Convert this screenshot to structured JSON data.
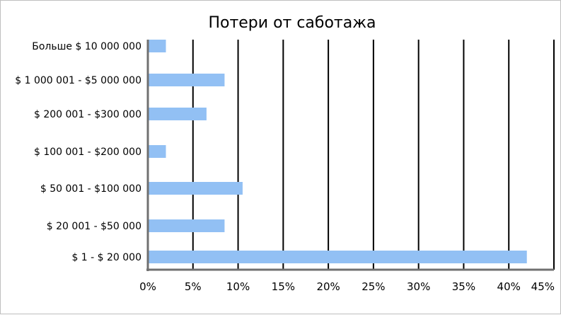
{
  "chart_data": {
    "type": "bar",
    "orientation": "horizontal",
    "title": "Потери от саботажа",
    "categories": [
      "Больше $ 10 000 000",
      "$ 1 000 001 - $5 000 000",
      "$ 200 001 - $300 000",
      "$ 100 001 - $200 000",
      "$ 50 001 - $100 000",
      "$ 20 001 - $50 000",
      "$ 1 - $ 20 000"
    ],
    "values": [
      2,
      8.5,
      6.5,
      2,
      10.5,
      8.5,
      42
    ],
    "xlim": [
      0,
      45
    ],
    "x_ticks": [
      0,
      5,
      10,
      15,
      20,
      25,
      30,
      35,
      40,
      45
    ],
    "x_tick_labels": [
      "0%",
      "5%",
      "10%",
      "15%",
      "20%",
      "25%",
      "30%",
      "35%",
      "40%",
      "45%"
    ],
    "xlabel": "",
    "ylabel": "",
    "grid": "vertical",
    "legend": "none",
    "colors": {
      "bar": "#92c0f4",
      "grid": "#000000",
      "axis": "#707070"
    }
  }
}
